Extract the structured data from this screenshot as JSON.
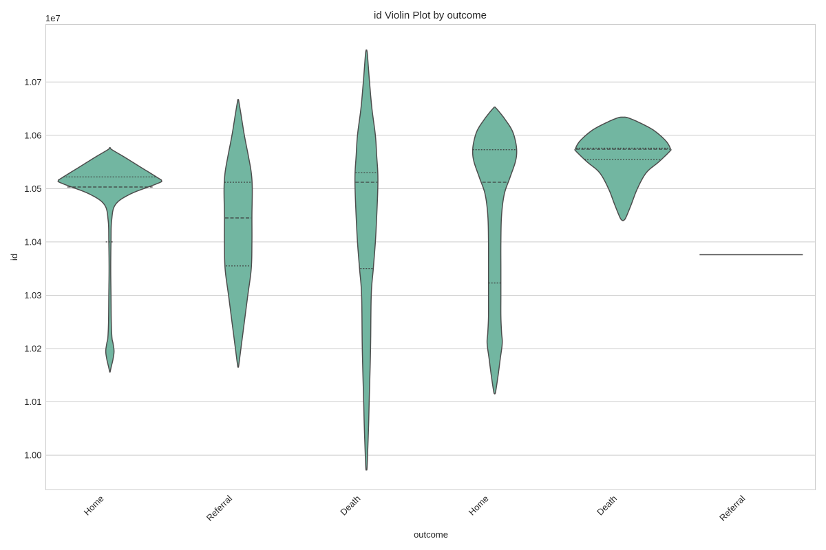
{
  "chart_data": {
    "type": "violin",
    "title": "id Violin Plot by outcome",
    "xlabel": "outcome",
    "ylabel": "id",
    "y_offset_label": "1e7",
    "ylim": [
      0.9935,
      1.0808
    ],
    "yticks": [
      1.0,
      1.01,
      1.02,
      1.03,
      1.04,
      1.05,
      1.06,
      1.07
    ],
    "grid": true,
    "color": "#72b6a1",
    "edge_color": "#4d4d4d",
    "categories": [
      "Home",
      "Referral",
      "Death",
      "Home",
      "Death",
      "Referral"
    ],
    "violins": [
      {
        "label": "Home",
        "profile": [
          [
            1.0156,
            0.3
          ],
          [
            1.0165,
            1.8
          ],
          [
            1.018,
            4.5
          ],
          [
            1.0195,
            6
          ],
          [
            1.021,
            4.5
          ],
          [
            1.022,
            3
          ],
          [
            1.025,
            2
          ],
          [
            1.03,
            1.6
          ],
          [
            1.035,
            1.2
          ],
          [
            1.04,
            1.6
          ],
          [
            1.044,
            2.5
          ],
          [
            1.047,
            8
          ],
          [
            1.049,
            30
          ],
          [
            1.051,
            70
          ],
          [
            1.0515,
            75
          ],
          [
            1.052,
            70
          ],
          [
            1.054,
            45
          ],
          [
            1.056,
            20
          ],
          [
            1.0573,
            3
          ],
          [
            1.0577,
            0.3
          ]
        ],
        "quartile_lines": [
          {
            "y": 1.04,
            "half_width": 6
          },
          {
            "y": 1.0503,
            "half_width": 62
          },
          {
            "y": 1.0522,
            "half_width": 68
          }
        ]
      },
      {
        "label": "Referral",
        "profile": [
          [
            1.0165,
            0.3
          ],
          [
            1.017,
            1
          ],
          [
            1.02,
            4
          ],
          [
            1.025,
            9
          ],
          [
            1.03,
            14
          ],
          [
            1.035,
            19
          ],
          [
            1.04,
            20
          ],
          [
            1.045,
            20
          ],
          [
            1.05,
            20.5
          ],
          [
            1.053,
            19
          ],
          [
            1.056,
            15
          ],
          [
            1.06,
            9
          ],
          [
            1.064,
            4
          ],
          [
            1.0667,
            0.5
          ]
        ],
        "quartile_lines": [
          {
            "y": 1.0355,
            "half_width": 18
          },
          {
            "y": 1.0445,
            "half_width": 19
          },
          {
            "y": 1.0512,
            "half_width": 20
          }
        ]
      },
      {
        "label": "Death",
        "profile": [
          [
            0.9973,
            0.3
          ],
          [
            0.998,
            1
          ],
          [
            1.005,
            3
          ],
          [
            1.01,
            4
          ],
          [
            1.02,
            6
          ],
          [
            1.03,
            7
          ],
          [
            1.035,
            10
          ],
          [
            1.04,
            13
          ],
          [
            1.045,
            15
          ],
          [
            1.05,
            16.5
          ],
          [
            1.053,
            16.5
          ],
          [
            1.056,
            15
          ],
          [
            1.06,
            13
          ],
          [
            1.065,
            8
          ],
          [
            1.07,
            4.5
          ],
          [
            1.075,
            1.5
          ],
          [
            1.076,
            0.4
          ]
        ],
        "quartile_lines": [
          {
            "y": 1.035,
            "half_width": 9
          },
          {
            "y": 1.0512,
            "half_width": 16
          },
          {
            "y": 1.053,
            "half_width": 16
          }
        ]
      },
      {
        "label": "Home",
        "profile": [
          [
            1.0115,
            0.3
          ],
          [
            1.012,
            1.5
          ],
          [
            1.015,
            5
          ],
          [
            1.018,
            8
          ],
          [
            1.021,
            11
          ],
          [
            1.023,
            10
          ],
          [
            1.026,
            9
          ],
          [
            1.03,
            9
          ],
          [
            1.035,
            9
          ],
          [
            1.04,
            9
          ],
          [
            1.045,
            10
          ],
          [
            1.049,
            14
          ],
          [
            1.052,
            22
          ],
          [
            1.055,
            30
          ],
          [
            1.057,
            32
          ],
          [
            1.059,
            30
          ],
          [
            1.061,
            25
          ],
          [
            1.063,
            15
          ],
          [
            1.0645,
            6
          ],
          [
            1.0653,
            0.5
          ]
        ],
        "quartile_lines": [
          {
            "y": 1.0323,
            "half_width": 9
          },
          {
            "y": 1.0512,
            "half_width": 18
          },
          {
            "y": 1.0573,
            "half_width": 32
          }
        ]
      },
      {
        "label": "Death",
        "profile": [
          [
            1.044,
            0.3
          ],
          [
            1.0445,
            4
          ],
          [
            1.047,
            12
          ],
          [
            1.05,
            21
          ],
          [
            1.053,
            34
          ],
          [
            1.055,
            52
          ],
          [
            1.057,
            68
          ],
          [
            1.0575,
            69
          ],
          [
            1.059,
            62
          ],
          [
            1.061,
            44
          ],
          [
            1.0625,
            22
          ],
          [
            1.0633,
            7
          ],
          [
            1.0634,
            0.5
          ]
        ],
        "quartile_lines": [
          {
            "y": 1.0555,
            "half_width": 56
          },
          {
            "y": 1.0574,
            "half_width": 68
          },
          {
            "y": 1.0576,
            "half_width": 68
          }
        ]
      },
      {
        "label": "Referral",
        "degenerate": true,
        "value": 1.0376,
        "line_half_width": 75
      }
    ]
  }
}
